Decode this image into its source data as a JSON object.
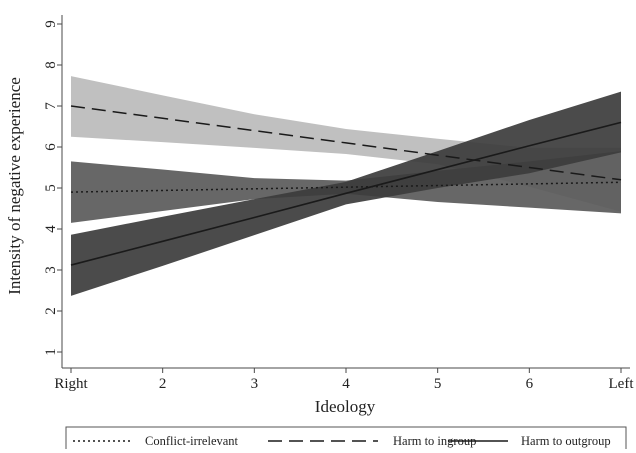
{
  "chart_data": {
    "type": "line",
    "xlabel": "Ideology",
    "ylabel": "Intensity of negative experience",
    "x": [
      1,
      2,
      3,
      4,
      5,
      6,
      7
    ],
    "x_tick_labels": [
      "Right",
      "2",
      "3",
      "4",
      "5",
      "6",
      "Left"
    ],
    "xlim": [
      1,
      7
    ],
    "ylim": [
      1,
      9
    ],
    "y_ticks": [
      1,
      2,
      3,
      4,
      5,
      6,
      7,
      8,
      9
    ],
    "y_tick_labels": [
      "1",
      "2",
      "3",
      "4",
      "5",
      "6",
      "7",
      "8",
      "9"
    ],
    "grid": false,
    "legend_position": "bottom",
    "series": [
      {
        "name": "Conflict-irrelevant",
        "line_style": "dotted",
        "values": [
          4.9,
          4.94,
          4.98,
          5.02,
          5.06,
          5.1,
          5.14
        ],
        "ci_lower": [
          4.15,
          4.44,
          4.73,
          4.86,
          4.66,
          4.52,
          4.38
        ],
        "ci_upper": [
          5.65,
          5.45,
          5.24,
          5.18,
          5.42,
          5.65,
          5.9
        ],
        "band_color": "#5a5a5a"
      },
      {
        "name": "Harm to ingroup",
        "line_style": "dashed",
        "values": [
          7.0,
          6.7,
          6.4,
          6.1,
          5.8,
          5.5,
          5.2
        ],
        "ci_lower": [
          6.25,
          6.12,
          5.98,
          5.83,
          5.58,
          5.03,
          4.42
        ],
        "ci_upper": [
          7.73,
          7.26,
          6.8,
          6.44,
          6.2,
          5.98,
          5.98
        ],
        "band_color": "#bdbdbd"
      },
      {
        "name": "Harm to outgroup",
        "line_style": "solid",
        "values": [
          3.12,
          3.7,
          4.28,
          4.87,
          5.45,
          6.03,
          6.6
        ],
        "ci_lower": [
          2.37,
          3.1,
          3.85,
          4.6,
          5.0,
          5.36,
          5.87
        ],
        "ci_upper": [
          3.86,
          4.3,
          4.73,
          5.15,
          5.9,
          6.66,
          7.35
        ],
        "band_color": "#3c3c3c"
      }
    ]
  },
  "colors": {
    "axis": "#4a4a4a",
    "line": "#1a1a1a",
    "background": "#ffffff"
  }
}
